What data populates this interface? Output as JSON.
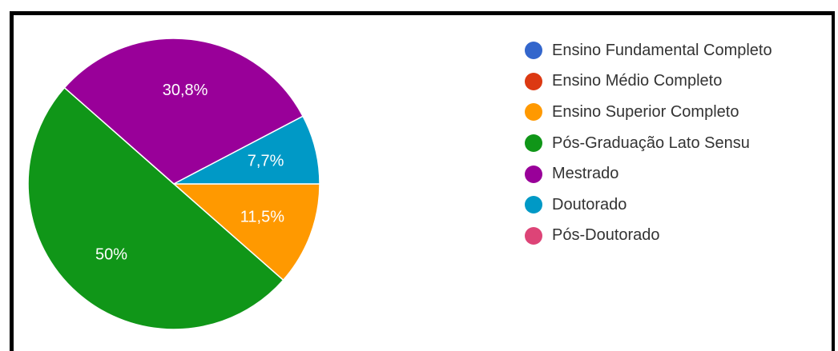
{
  "chart_data": {
    "type": "pie",
    "title": "",
    "legend_position": "right",
    "slices": [
      {
        "label": "Ensino Fundamental Completo",
        "value": 0,
        "value_label": "",
        "color": "#3366cc"
      },
      {
        "label": "Ensino Médio Completo",
        "value": 0,
        "value_label": "",
        "color": "#dc3912"
      },
      {
        "label": "Ensino Superior Completo",
        "value": 11.5,
        "value_label": "11,5%",
        "color": "#ff9900"
      },
      {
        "label": "Pós-Graduação Lato Sensu",
        "value": 50,
        "value_label": "50%",
        "color": "#109618"
      },
      {
        "label": "Mestrado",
        "value": 30.8,
        "value_label": "30,8%",
        "color": "#990099"
      },
      {
        "label": "Doutorado",
        "value": 7.7,
        "value_label": "7,7%",
        "color": "#0099c6"
      },
      {
        "label": "Pós-Doutorado",
        "value": 0,
        "value_label": "",
        "color": "#dd4477"
      }
    ]
  }
}
